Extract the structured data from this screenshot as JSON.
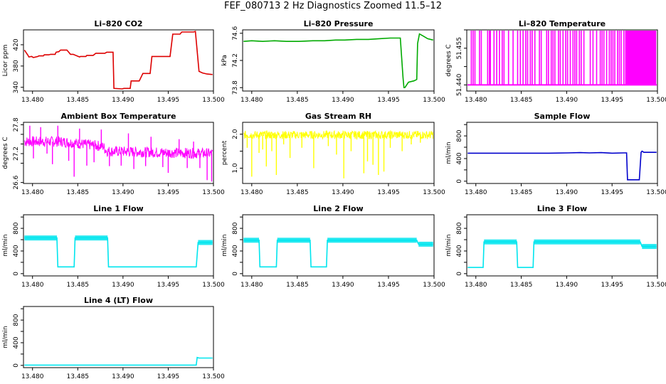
{
  "title": "FEF_080713  2 Hz Diagnostics Zoomed 11.5–12",
  "chart_data": [
    {
      "type": "line",
      "title": "Li–820 CO2",
      "ylabel": "Licor ppm",
      "color": "#dd0000",
      "xlim": [
        13.479,
        13.5
      ],
      "ylim": [
        333,
        448
      ],
      "xticks": [
        13.48,
        13.485,
        13.49,
        13.495,
        13.5
      ],
      "xtick_labels": [
        "13.480",
        "13.485",
        "13.490",
        "13.495",
        "13.500"
      ],
      "yticks": [
        340,
        380,
        420
      ],
      "ytick_labels": [
        "340",
        "380",
        "420"
      ],
      "x": [
        13.4791,
        13.4795,
        13.4796,
        13.4799,
        13.4801,
        13.4806,
        13.4807,
        13.4812,
        13.4813,
        13.4818,
        13.482,
        13.4825,
        13.4826,
        13.4829,
        13.4831,
        13.4838,
        13.4839,
        13.4842,
        13.4845,
        13.4852,
        13.4853,
        13.4859,
        13.486,
        13.4867,
        13.487,
        13.488,
        13.4882,
        13.4889,
        13.489,
        13.4899,
        13.4901,
        13.4908,
        13.4909,
        13.4918,
        13.4922,
        13.493,
        13.4932,
        13.4952,
        13.4955,
        13.4963,
        13.4965,
        13.4978,
        13.498,
        13.4984,
        13.4988,
        13.4993,
        13.4999
      ],
      "y": [
        410,
        400,
        397,
        398,
        396,
        398,
        399,
        399,
        401,
        401,
        402,
        402,
        406,
        407,
        410,
        410,
        408,
        402,
        402,
        397,
        398,
        398,
        400,
        400,
        404,
        404,
        406,
        406,
        338,
        337,
        338,
        338,
        352,
        352,
        366,
        366,
        398,
        398,
        440,
        440,
        444,
        444,
        445,
        370,
        367,
        365,
        364
      ]
    },
    {
      "type": "line",
      "title": "Li–820 Pressure",
      "ylabel": "kPa",
      "color": "#00aa00",
      "xlim": [
        13.479,
        13.5
      ],
      "ylim": [
        73.75,
        74.65
      ],
      "xticks": [
        13.48,
        13.485,
        13.49,
        13.495,
        13.5
      ],
      "xtick_labels": [
        "13.480",
        "13.485",
        "13.490",
        "13.495",
        "13.500"
      ],
      "yticks": [
        73.8,
        74.2,
        74.6
      ],
      "ytick_labels": [
        "73.8",
        "74.2",
        "74.6"
      ],
      "x": [
        13.4791,
        13.48,
        13.4812,
        13.4825,
        13.4838,
        13.4852,
        13.4867,
        13.488,
        13.4892,
        13.4902,
        13.4915,
        13.4928,
        13.494,
        13.4952,
        13.4963,
        13.4966,
        13.4967,
        13.4968,
        13.4972,
        13.4978,
        13.4981,
        13.4982,
        13.4984,
        13.4988,
        13.4993,
        13.4999
      ],
      "y": [
        74.48,
        74.49,
        74.48,
        74.49,
        74.48,
        74.48,
        74.49,
        74.49,
        74.5,
        74.5,
        74.51,
        74.51,
        74.52,
        74.53,
        74.53,
        73.95,
        73.8,
        73.8,
        73.88,
        73.9,
        73.92,
        74.45,
        74.59,
        74.56,
        74.52,
        74.5
      ]
    },
    {
      "type": "bar",
      "title": "Li–820 Temperature",
      "ylabel": "degrees C",
      "color": "#ff00ff",
      "xlim": [
        13.479,
        13.5
      ],
      "ylim": [
        51.4375,
        51.4625
      ],
      "xticks": [
        13.48,
        13.485,
        13.49,
        13.495,
        13.5
      ],
      "xtick_labels": [
        "13.480",
        "13.485",
        "13.490",
        "13.495",
        "13.500"
      ],
      "yticks": [
        51.44,
        51.4475,
        51.455,
        51.4625
      ],
      "ytick_labels": [
        "51.440",
        "51.455"
      ],
      "baseline": 51.44,
      "high": 51.4625,
      "spikes": [
        13.4795,
        13.4797,
        13.4799,
        13.4804,
        13.4806,
        13.4813,
        13.4815,
        13.4816,
        13.482,
        13.4823,
        13.4826,
        13.4829,
        13.4831,
        13.4836,
        13.4841,
        13.4846,
        13.4849,
        13.4852,
        13.4855,
        13.4857,
        13.486,
        13.4862,
        13.4865,
        13.487,
        13.4872,
        13.4878,
        13.488,
        13.4883,
        13.4885,
        13.4887,
        13.4891,
        13.4893,
        13.4896,
        13.4899,
        13.4901,
        13.4904,
        13.4907,
        13.4909,
        13.4911,
        13.4914,
        13.4916,
        13.4919,
        13.4926,
        13.4929,
        13.4933,
        13.4937,
        13.4939,
        13.4941,
        13.4944,
        13.4947,
        13.4949,
        13.4951,
        13.4953,
        13.4956,
        13.4958,
        13.496,
        13.4963,
        13.4965,
        13.4966,
        13.4967,
        13.4967,
        13.4968,
        13.4969,
        13.4969,
        13.497,
        13.4971,
        13.4971,
        13.4972,
        13.4973,
        13.4973,
        13.4974,
        13.4975,
        13.4975,
        13.4976,
        13.4977,
        13.4977,
        13.4978,
        13.4979,
        13.4979,
        13.498,
        13.4981,
        13.4981,
        13.4982,
        13.4983,
        13.4983,
        13.4984,
        13.4985,
        13.4985,
        13.4986,
        13.4987,
        13.4987,
        13.4988,
        13.4989,
        13.4989,
        13.499,
        13.4991,
        13.4991,
        13.4992,
        13.4993,
        13.4993,
        13.4994,
        13.4995,
        13.4995,
        13.4996,
        13.4997,
        13.4997,
        13.4998
      ]
    },
    {
      "type": "band",
      "title": "Ambient Box Temperature",
      "ylabel": "degrees C",
      "color": "#ff00ff",
      "xlim": [
        13.479,
        13.5
      ],
      "ylim": [
        26.58,
        27.85
      ],
      "xticks": [
        13.48,
        13.485,
        13.49,
        13.495,
        13.5
      ],
      "xtick_labels": [
        "13.480",
        "13.485",
        "13.490",
        "13.495",
        "13.500"
      ],
      "yticks": [
        26.6,
        27.2,
        27.8
      ],
      "ytick_labels": [
        "26.6",
        "27.2",
        "27.8"
      ],
      "extra_yticks": [
        27.0,
        27.4,
        27.6
      ],
      "center": [
        [
          13.4791,
          27.45
        ],
        [
          13.4832,
          27.45
        ],
        [
          13.4855,
          27.4
        ],
        [
          13.4878,
          27.35
        ],
        [
          13.4882,
          27.25
        ],
        [
          13.4999,
          27.2
        ]
      ],
      "half_width": 0.11,
      "outliers": [
        [
          13.4797,
          27.78
        ],
        [
          13.4801,
          27.1
        ],
        [
          13.4809,
          27.75
        ],
        [
          13.4816,
          27.2
        ],
        [
          13.4822,
          26.98
        ],
        [
          13.4828,
          27.78
        ],
        [
          13.484,
          27.05
        ],
        [
          13.4846,
          26.72
        ],
        [
          13.4852,
          27.72
        ],
        [
          13.486,
          26.95
        ],
        [
          13.4868,
          27.02
        ],
        [
          13.4876,
          27.7
        ],
        [
          13.4885,
          26.94
        ],
        [
          13.4898,
          26.95
        ],
        [
          13.4906,
          27.62
        ],
        [
          13.4912,
          26.88
        ],
        [
          13.4925,
          26.94
        ],
        [
          13.4931,
          27.55
        ],
        [
          13.4944,
          26.92
        ],
        [
          13.495,
          26.8
        ],
        [
          13.4962,
          27.5
        ],
        [
          13.4971,
          26.9
        ],
        [
          13.4978,
          27.45
        ],
        [
          13.4985,
          26.9
        ],
        [
          13.4993,
          26.65
        ],
        [
          13.4998,
          26.62
        ]
      ]
    },
    {
      "type": "band",
      "title": "Gas Stream RH",
      "ylabel": "percent",
      "color": "#ffff00",
      "xlim": [
        13.479,
        13.5
      ],
      "ylim": [
        0.55,
        2.35
      ],
      "xticks": [
        13.48,
        13.485,
        13.49,
        13.495,
        13.5
      ],
      "xtick_labels": [
        "13.480",
        "13.485",
        "13.490",
        "13.495",
        "13.500"
      ],
      "yticks": [
        1.0,
        2.0
      ],
      "ytick_labels": [
        "1.0",
        "2.0"
      ],
      "extra_yticks": [
        1.5
      ],
      "center": [
        [
          13.4791,
          1.98
        ],
        [
          13.4999,
          1.98
        ]
      ],
      "half_width": 0.12,
      "outliers": [
        [
          13.4795,
          1.6
        ],
        [
          13.48,
          0.75
        ],
        [
          13.4808,
          1.45
        ],
        [
          13.4812,
          1.55
        ],
        [
          13.4816,
          1.05
        ],
        [
          13.4822,
          1.5
        ],
        [
          13.4827,
          0.8
        ],
        [
          13.4835,
          1.7
        ],
        [
          13.4842,
          1.3
        ],
        [
          13.4855,
          1.6
        ],
        [
          13.4868,
          1.0
        ],
        [
          13.4884,
          1.65
        ],
        [
          13.4893,
          1.4
        ],
        [
          13.4901,
          0.7
        ],
        [
          13.4909,
          1.5
        ],
        [
          13.4923,
          0.85
        ],
        [
          13.4927,
          1.2
        ],
        [
          13.4933,
          1.1
        ],
        [
          13.4939,
          0.8
        ],
        [
          13.4945,
          0.9
        ],
        [
          13.4952,
          1.6
        ],
        [
          13.4965,
          1.5
        ],
        [
          13.4975,
          1.7
        ],
        [
          13.4985,
          1.75
        ]
      ]
    },
    {
      "type": "line",
      "title": "Sample Flow",
      "ylabel": "ml/min",
      "color": "#0000cc",
      "xlim": [
        13.479,
        13.5
      ],
      "ylim": [
        -40,
        1040
      ],
      "xticks": [
        13.48,
        13.485,
        13.49,
        13.495,
        13.5
      ],
      "xtick_labels": [
        "13.480",
        "13.485",
        "13.490",
        "13.495",
        "13.500"
      ],
      "yticks": [
        0,
        200,
        400,
        600,
        800,
        1000
      ],
      "ytick_labels": [
        "0",
        "400",
        "800"
      ],
      "x": [
        13.4791,
        13.488,
        13.4902,
        13.4915,
        13.4925,
        13.4938,
        13.495,
        13.4963,
        13.4966,
        13.4967,
        13.498,
        13.4982,
        13.4983,
        13.4985,
        13.4999
      ],
      "y": [
        495,
        495,
        500,
        505,
        500,
        505,
        495,
        500,
        500,
        25,
        25,
        510,
        530,
        510,
        510
      ]
    },
    {
      "type": "line",
      "title": "Line 1 Flow",
      "ylabel": "ml/min",
      "color": "#00e5ee",
      "xlim": [
        13.479,
        13.5
      ],
      "ylim": [
        -40,
        1040
      ],
      "xticks": [
        13.48,
        13.485,
        13.49,
        13.495,
        13.5
      ],
      "xtick_labels": [
        "13.480",
        "13.485",
        "13.490",
        "13.495",
        "13.500"
      ],
      "yticks": [
        0,
        200,
        400,
        600,
        800,
        1000
      ],
      "ytick_labels": [
        "0",
        "400",
        "800"
      ],
      "x": [
        13.4791,
        13.4827,
        13.4828,
        13.4846,
        13.4847,
        13.4883,
        13.4884,
        13.4981,
        13.4983,
        13.4999
      ],
      "y": [
        630,
        630,
        120,
        120,
        630,
        630,
        120,
        120,
        550,
        550
      ],
      "thick": [
        [
          13.4791,
          13.4827
        ],
        [
          13.4847,
          13.4883
        ],
        [
          13.4983,
          13.4999
        ]
      ]
    },
    {
      "type": "line",
      "title": "Line 2 Flow",
      "ylabel": "ml/min",
      "color": "#00e5ee",
      "xlim": [
        13.479,
        13.5
      ],
      "ylim": [
        -40,
        1040
      ],
      "xticks": [
        13.48,
        13.485,
        13.49,
        13.495,
        13.5
      ],
      "xtick_labels": [
        "13.480",
        "13.485",
        "13.490",
        "13.495",
        "13.500"
      ],
      "yticks": [
        0,
        200,
        400,
        600,
        800,
        1000
      ],
      "ytick_labels": [
        "0",
        "400",
        "800"
      ],
      "x": [
        13.4791,
        13.4808,
        13.4809,
        13.4827,
        13.4828,
        13.4864,
        13.4865,
        13.4882,
        13.4883,
        13.4981,
        13.4983,
        13.4999
      ],
      "y": [
        590,
        590,
        120,
        120,
        590,
        590,
        120,
        120,
        590,
        590,
        520,
        520
      ],
      "thick": [
        [
          13.4791,
          13.4808
        ],
        [
          13.4828,
          13.4864
        ],
        [
          13.4883,
          13.4981
        ],
        [
          13.4983,
          13.4999
        ]
      ]
    },
    {
      "type": "line",
      "title": "Line 3 Flow",
      "ylabel": "ml/min",
      "color": "#00e5ee",
      "xlim": [
        13.479,
        13.5
      ],
      "ylim": [
        -40,
        1040
      ],
      "xticks": [
        13.48,
        13.485,
        13.49,
        13.495,
        13.5
      ],
      "xtick_labels": [
        "13.480",
        "13.485",
        "13.490",
        "13.495",
        "13.500"
      ],
      "yticks": [
        0,
        200,
        400,
        600,
        800,
        1000
      ],
      "ytick_labels": [
        "0",
        "400",
        "800"
      ],
      "x": [
        13.4791,
        13.4808,
        13.4809,
        13.4845,
        13.4846,
        13.4863,
        13.4864,
        13.4981,
        13.4983,
        13.4999
      ],
      "y": [
        110,
        110,
        560,
        560,
        110,
        110,
        560,
        560,
        480,
        480
      ],
      "thick": [
        [
          13.4809,
          13.4845
        ],
        [
          13.4864,
          13.4981
        ],
        [
          13.4983,
          13.4999
        ]
      ]
    },
    {
      "type": "line",
      "title": "Line 4 (LT) Flow",
      "ylabel": "ml/min",
      "color": "#00e5ee",
      "xlim": [
        13.479,
        13.5
      ],
      "ylim": [
        -40,
        1040
      ],
      "xticks": [
        13.48,
        13.485,
        13.49,
        13.495,
        13.5
      ],
      "xtick_labels": [
        "13.480",
        "13.485",
        "13.490",
        "13.495",
        "13.500"
      ],
      "yticks": [
        0,
        200,
        400,
        600,
        800,
        1000
      ],
      "ytick_labels": [
        "0",
        "400",
        "800"
      ],
      "x": [
        13.4791,
        13.4981,
        13.4982,
        13.4984,
        13.4999
      ],
      "y": [
        5,
        5,
        140,
        130,
        130
      ],
      "thick": []
    }
  ]
}
